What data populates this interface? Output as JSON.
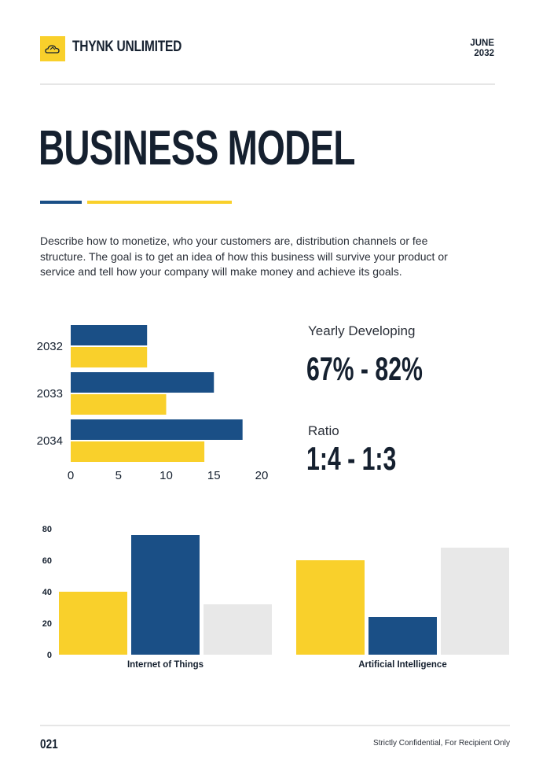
{
  "header": {
    "brand": "THYNK UNLIMITED",
    "date_month": "JUNE",
    "date_year": "2032"
  },
  "title": "BUSINESS MODEL",
  "description": "Describe how to monetize, who your customers are, distribution channels or fee structure. The goal is to get an idea of how this business will survive your product or service and tell how your company will make money and achieve its goals.",
  "stats": [
    {
      "label": "Yearly Developing",
      "value": "67% - 82%"
    },
    {
      "label": "Ratio",
      "value": "1:4 - 1:3"
    }
  ],
  "colors": {
    "navy": "#1a4f86",
    "yellow": "#f9d02b",
    "gray": "#e8e8e8",
    "text": "#15202f"
  },
  "chart_data": [
    {
      "type": "bar",
      "orientation": "horizontal",
      "categories": [
        "2032",
        "2033",
        "2034"
      ],
      "series": [
        {
          "values": [
            8,
            15,
            18
          ],
          "color": "#1a4f86"
        },
        {
          "values": [
            8,
            10,
            14
          ],
          "color": "#f9d02b"
        }
      ],
      "xlim": [
        0,
        20
      ],
      "xticks": [
        0,
        5,
        10,
        15,
        20
      ]
    },
    {
      "type": "bar",
      "categories": [
        "Internet of Things",
        "Artificial Intelligence"
      ],
      "series": [
        {
          "values": [
            40,
            60
          ],
          "color": "#f9d02b"
        },
        {
          "values": [
            76,
            24
          ],
          "color": "#1a4f86"
        },
        {
          "values": [
            32,
            68
          ],
          "color": "#e8e8e8"
        }
      ],
      "ylim": [
        0,
        80
      ],
      "yticks": [
        0,
        20,
        40,
        60,
        80
      ]
    }
  ],
  "footer": {
    "page_number": "021",
    "note": "Strictly Confidential, For Recipient Only"
  }
}
